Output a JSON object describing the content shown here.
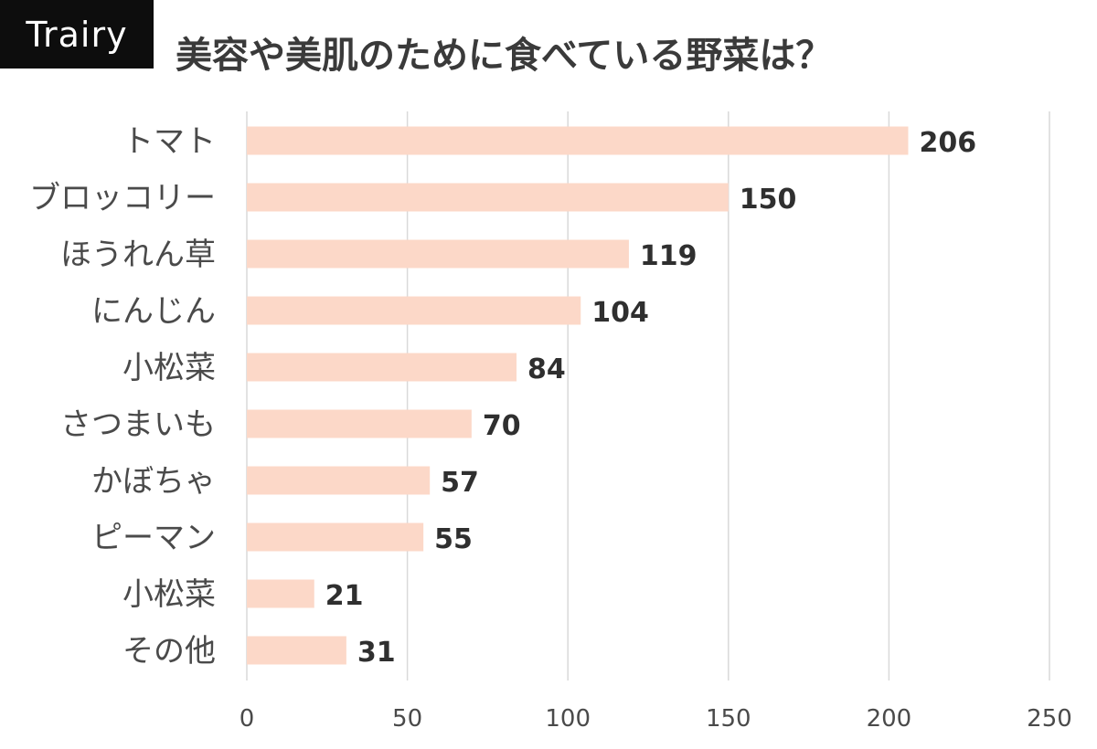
{
  "brand": {
    "logo_text": "Trairy"
  },
  "colors": {
    "bar": "#fcd8c8",
    "grid": "#d9d9d9",
    "brand_bg": "#0d0d0d"
  },
  "chart_data": {
    "type": "bar",
    "orientation": "horizontal",
    "title": "美容や美肌のために食べている野菜は？",
    "categories": [
      "トマト",
      "ブロッコリー",
      "ほうれん草",
      "にんじん",
      "小松菜",
      "さつまいも",
      "かぼちゃ",
      "ピーマン",
      "小松菜",
      "その他"
    ],
    "values": [
      206,
      150,
      119,
      104,
      84,
      70,
      57,
      55,
      21,
      31
    ],
    "xlim": [
      0,
      250
    ],
    "xticks": [
      0,
      50,
      100,
      150,
      200,
      250
    ],
    "grid": true,
    "legend": "none"
  }
}
